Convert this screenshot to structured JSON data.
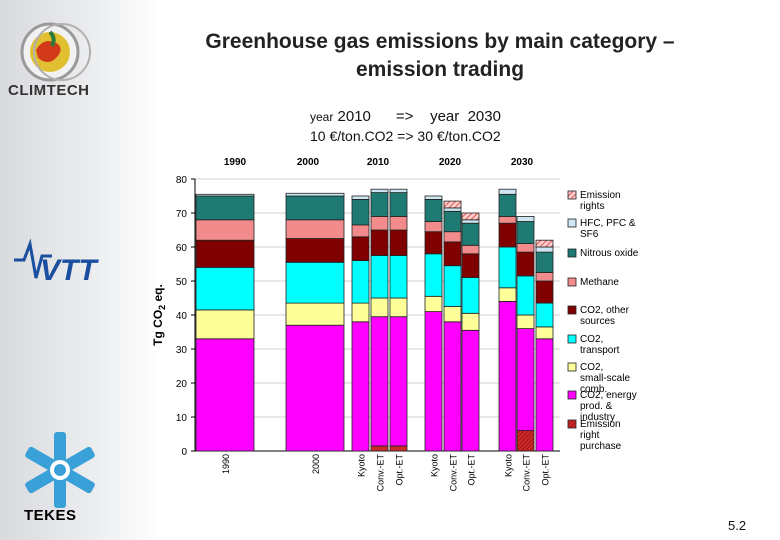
{
  "slide": {
    "title_line1": "Greenhouse gas emissions by main category –",
    "title_line2": "emission trading",
    "subtitle_year_word1": "year",
    "subtitle_year_rest": "2010      =>    year  2030",
    "subtitle_price": "10 €/ton.CO2  => 30 €/ton.CO2",
    "org_left_top": "CLIMTECH",
    "org_left_bottom": "TEKES",
    "page_number": "5.2"
  },
  "colors": {
    "emission_rights": "#ffcccc",
    "hfc": "#cde6f2",
    "nitrous": "#1f7a74",
    "methane": "#f28c8c",
    "co2_other": "#800000",
    "co2_transport": "#00ffff",
    "co2_small": "#ffff99",
    "co2_energy": "#ff00ff",
    "emission_purchase": "#cc2a2a",
    "chart_bg": "#ffffff"
  },
  "chart_data": {
    "type": "bar",
    "stacked": true,
    "ylabel": "Tg CO2 eq.",
    "ylim": [
      0,
      80
    ],
    "yticks": [
      0,
      10,
      20,
      30,
      40,
      50,
      60,
      70,
      80
    ],
    "top_labels": [
      "1990",
      "2000",
      "2010",
      "2020",
      "2030"
    ],
    "categories": [
      "1990",
      "2000",
      "Kyoto",
      "Conv.-ET",
      "Opt.-ET",
      "Kyoto",
      "Conv.-ET",
      "Opt.-ET",
      "Kyoto",
      "Conv.-ET",
      "Opt.-ET"
    ],
    "series": [
      {
        "name": "Emission right purchase",
        "key": "emission_purchase",
        "values": [
          0,
          0,
          0,
          1.5,
          1.5,
          0,
          0,
          0,
          0,
          6,
          0
        ]
      },
      {
        "name": "CO2, energy prod. & industry",
        "key": "co2_energy",
        "values": [
          33,
          37,
          38,
          38,
          38,
          41,
          38,
          35.5,
          44,
          30,
          33
        ]
      },
      {
        "name": "CO2, small-scale comb.",
        "key": "co2_small",
        "values": [
          8.5,
          6.5,
          5.5,
          5.5,
          5.5,
          4.5,
          4.5,
          5,
          4,
          4,
          3.5
        ]
      },
      {
        "name": "CO2, transport",
        "key": "co2_transport",
        "values": [
          12.5,
          12,
          12.5,
          12.5,
          12.5,
          12.5,
          12,
          10.5,
          12,
          11.5,
          7
        ]
      },
      {
        "name": "CO2, other sources",
        "key": "co2_other",
        "values": [
          8,
          7,
          7,
          7.5,
          7.5,
          6.5,
          7,
          7,
          7,
          7,
          6.5
        ]
      },
      {
        "name": "Methane",
        "key": "methane",
        "values": [
          6,
          5.5,
          3.5,
          4,
          4,
          3,
          3,
          2.5,
          2,
          2.5,
          2.5
        ]
      },
      {
        "name": "Nitrous oxide",
        "key": "nitrous",
        "values": [
          7,
          7,
          7.5,
          7,
          7,
          6.5,
          6,
          6.5,
          6.5,
          6.5,
          6
        ]
      },
      {
        "name": "HFC, PFC & SF6",
        "key": "hfc",
        "values": [
          0.5,
          0.8,
          1,
          1,
          1,
          1,
          1,
          1,
          1.5,
          1.5,
          1.5
        ]
      },
      {
        "name": "Emission rights",
        "key": "emission_rights",
        "values": [
          0,
          0,
          0,
          0,
          0,
          0,
          2,
          2,
          0,
          0,
          2
        ]
      }
    ],
    "legend": [
      {
        "label": "Emission rights",
        "key": "emission_rights"
      },
      {
        "label": "HFC, PFC & SF6",
        "key": "hfc"
      },
      {
        "label": "Nitrous oxide",
        "key": "nitrous"
      },
      {
        "label": "Methane",
        "key": "methane"
      },
      {
        "label": "CO2, other sources",
        "key": "co2_other"
      },
      {
        "label": "CO2, transport",
        "key": "co2_transport"
      },
      {
        "label": "CO2, small-scale comb.",
        "key": "co2_small"
      },
      {
        "label": "CO2, energy prod. & industry",
        "key": "co2_energy"
      },
      {
        "label": "Emission right purchase",
        "key": "emission_purchase"
      }
    ]
  }
}
